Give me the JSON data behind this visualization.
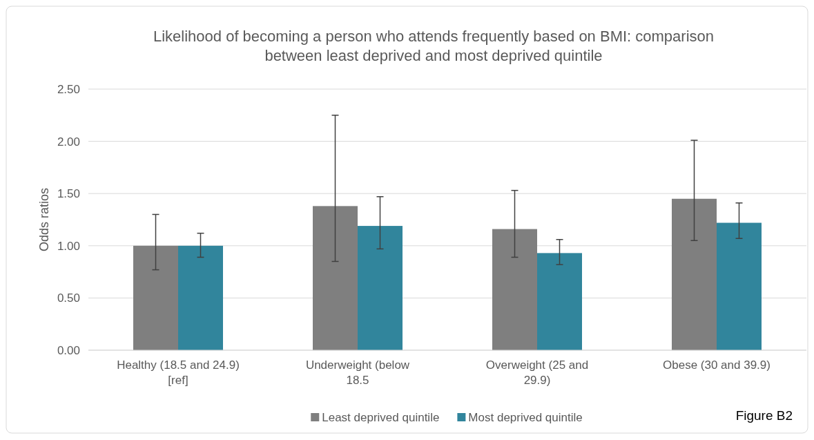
{
  "chart_data": {
    "type": "bar",
    "title": "Likelihood of becoming a person who attends frequently based on BMI: comparison between least deprived and most deprived quintile",
    "ylabel": "Odds ratios",
    "categories": [
      "Healthy (18.5 and 24.9) [ref]",
      "Underweight (below 18.5",
      "Overweight (25 and 29.9)",
      "Obese (30 and 39.9)"
    ],
    "series": [
      {
        "name": "Least deprived quintile",
        "color": "#7f7f7f",
        "values": [
          1.0,
          1.38,
          1.16,
          1.45
        ],
        "errors": [
          [
            0.77,
            1.3
          ],
          [
            0.85,
            2.25
          ],
          [
            0.89,
            1.53
          ],
          [
            1.05,
            2.01
          ]
        ]
      },
      {
        "name": "Most deprived quintile",
        "color": "#31859c",
        "values": [
          1.0,
          1.19,
          0.93,
          1.22
        ],
        "errors": [
          [
            0.89,
            1.12
          ],
          [
            0.97,
            1.47
          ],
          [
            0.82,
            1.06
          ],
          [
            1.07,
            1.41
          ]
        ]
      }
    ],
    "ylim": [
      0,
      2.5
    ],
    "yticks": [
      {
        "value": 0,
        "label": "0.00"
      },
      {
        "value": 0.5,
        "label": "0.50"
      },
      {
        "value": 1,
        "label": "1.00"
      },
      {
        "value": 1.5,
        "label": "1.50"
      },
      {
        "value": 2,
        "label": "2.00"
      },
      {
        "value": 2.5,
        "label": "2.50"
      }
    ],
    "grid": "y",
    "legend": "bottom",
    "annotations": [
      "Figure B2"
    ]
  }
}
